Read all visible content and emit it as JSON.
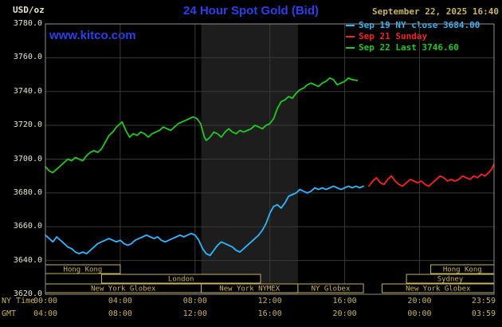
{
  "colors": {
    "background": "#000000",
    "blue": "#2a3ff0",
    "tan": "#c8b45a",
    "axis_text": "#e8e4d0",
    "grid": "#383838",
    "frame": "#8f8f8f",
    "band": "#1d1d1d"
  },
  "header": {
    "unit_label": "USD/oz",
    "title": "24 Hour Spot Gold (Bid)",
    "datetime": "September 22, 2025 16:40",
    "watermark": "www.kitco.com"
  },
  "axis": {
    "ny_label": "NY Time",
    "gmt_label": "GMT",
    "tick_hours": [
      0,
      4,
      8,
      12,
      16,
      20,
      23.983
    ],
    "ny_ticks": [
      "00:00",
      "04:00",
      "08:00",
      "12:00",
      "16:00",
      "20:00",
      "23:59"
    ],
    "gmt_ticks": [
      "04:00",
      "08:00",
      "12:00",
      "16:00",
      "20:00",
      "00:00",
      "03:59"
    ],
    "y_ticks": [
      "3780.0",
      "3760.0",
      "3740.0",
      "3720.0",
      "3700.0",
      "3680.0",
      "3660.0",
      "3640.0",
      "3620.0"
    ]
  },
  "chart_data": {
    "type": "line",
    "title": "24 Hour Spot Gold (Bid)",
    "xlabel": "NY Time",
    "ylabel": "USD/oz",
    "ylim": [
      3620,
      3780
    ],
    "xlim_hours": [
      0,
      23.983
    ],
    "grid": true,
    "legend_position": "top-right",
    "shaded_region_hours": [
      8.33,
      13.5
    ],
    "series": [
      {
        "name": "Sep 19",
        "legend_label": "Sep 19 NY close 3684.00",
        "color": "#2bb8ff",
        "points": [
          [
            0,
            3655
          ],
          [
            0.2,
            3653
          ],
          [
            0.4,
            3651
          ],
          [
            0.6,
            3654
          ],
          [
            0.8,
            3652
          ],
          [
            1,
            3650
          ],
          [
            1.2,
            3648
          ],
          [
            1.4,
            3647
          ],
          [
            1.6,
            3645
          ],
          [
            1.8,
            3644
          ],
          [
            2,
            3645
          ],
          [
            2.2,
            3644
          ],
          [
            2.4,
            3646
          ],
          [
            2.6,
            3648
          ],
          [
            2.8,
            3650
          ],
          [
            3,
            3651
          ],
          [
            3.2,
            3652
          ],
          [
            3.4,
            3653
          ],
          [
            3.6,
            3652
          ],
          [
            3.8,
            3651
          ],
          [
            4,
            3652
          ],
          [
            4.2,
            3650
          ],
          [
            4.4,
            3649
          ],
          [
            4.6,
            3650
          ],
          [
            4.8,
            3652
          ],
          [
            5,
            3653
          ],
          [
            5.2,
            3654
          ],
          [
            5.4,
            3655
          ],
          [
            5.6,
            3654
          ],
          [
            5.8,
            3653
          ],
          [
            6,
            3654
          ],
          [
            6.2,
            3652
          ],
          [
            6.4,
            3651
          ],
          [
            6.6,
            3652
          ],
          [
            6.8,
            3653
          ],
          [
            7,
            3654
          ],
          [
            7.2,
            3655
          ],
          [
            7.4,
            3654
          ],
          [
            7.6,
            3655
          ],
          [
            7.8,
            3656
          ],
          [
            8,
            3655
          ],
          [
            8.2,
            3652
          ],
          [
            8.4,
            3647
          ],
          [
            8.6,
            3644
          ],
          [
            8.8,
            3643
          ],
          [
            9,
            3646
          ],
          [
            9.2,
            3649
          ],
          [
            9.4,
            3651
          ],
          [
            9.6,
            3650
          ],
          [
            9.8,
            3649
          ],
          [
            10,
            3648
          ],
          [
            10.2,
            3646
          ],
          [
            10.4,
            3645
          ],
          [
            10.6,
            3647
          ],
          [
            10.8,
            3649
          ],
          [
            11,
            3651
          ],
          [
            11.2,
            3653
          ],
          [
            11.4,
            3655
          ],
          [
            11.6,
            3658
          ],
          [
            11.8,
            3662
          ],
          [
            12,
            3668
          ],
          [
            12.2,
            3672
          ],
          [
            12.4,
            3673
          ],
          [
            12.6,
            3671
          ],
          [
            12.8,
            3674
          ],
          [
            13,
            3678
          ],
          [
            13.2,
            3679
          ],
          [
            13.4,
            3680
          ],
          [
            13.6,
            3682
          ],
          [
            13.8,
            3681
          ],
          [
            14,
            3680
          ],
          [
            14.2,
            3681
          ],
          [
            14.4,
            3683
          ],
          [
            14.6,
            3682
          ],
          [
            14.8,
            3683
          ],
          [
            15,
            3682
          ],
          [
            15.2,
            3683
          ],
          [
            15.4,
            3684
          ],
          [
            15.6,
            3683
          ],
          [
            15.8,
            3682
          ],
          [
            16,
            3683
          ],
          [
            16.2,
            3684
          ],
          [
            16.4,
            3683
          ],
          [
            16.6,
            3684
          ],
          [
            16.8,
            3683
          ],
          [
            17,
            3684
          ]
        ]
      },
      {
        "name": "Sep 21",
        "legend_label": "Sep 21 Sunday",
        "color": "#ff1f1f",
        "points": [
          [
            17.3,
            3684
          ],
          [
            17.5,
            3687
          ],
          [
            17.7,
            3689
          ],
          [
            17.9,
            3686
          ],
          [
            18.1,
            3685
          ],
          [
            18.3,
            3688
          ],
          [
            18.5,
            3690
          ],
          [
            18.7,
            3687
          ],
          [
            18.9,
            3685
          ],
          [
            19.1,
            3684
          ],
          [
            19.3,
            3686
          ],
          [
            19.5,
            3688
          ],
          [
            19.7,
            3687
          ],
          [
            19.9,
            3686
          ],
          [
            20.1,
            3687
          ],
          [
            20.3,
            3685
          ],
          [
            20.5,
            3684
          ],
          [
            20.7,
            3686
          ],
          [
            20.9,
            3688
          ],
          [
            21.1,
            3690
          ],
          [
            21.3,
            3689
          ],
          [
            21.5,
            3687
          ],
          [
            21.7,
            3688
          ],
          [
            21.9,
            3687
          ],
          [
            22.1,
            3688
          ],
          [
            22.3,
            3690
          ],
          [
            22.5,
            3689
          ],
          [
            22.7,
            3688
          ],
          [
            22.9,
            3690
          ],
          [
            23.1,
            3689
          ],
          [
            23.3,
            3691
          ],
          [
            23.5,
            3690
          ],
          [
            23.7,
            3692
          ],
          [
            23.85,
            3694
          ],
          [
            23.98,
            3697
          ]
        ]
      },
      {
        "name": "Sep 22",
        "legend_label": "Sep 22 Last 3746.60",
        "color": "#1ecb1e",
        "points": [
          [
            0,
            3695.5
          ],
          [
            0.2,
            3693
          ],
          [
            0.4,
            3692
          ],
          [
            0.6,
            3694
          ],
          [
            0.8,
            3696
          ],
          [
            1,
            3698
          ],
          [
            1.2,
            3700
          ],
          [
            1.4,
            3699
          ],
          [
            1.6,
            3701
          ],
          [
            1.8,
            3700
          ],
          [
            2,
            3699
          ],
          [
            2.2,
            3702
          ],
          [
            2.4,
            3704
          ],
          [
            2.6,
            3705
          ],
          [
            2.8,
            3704
          ],
          [
            3,
            3706
          ],
          [
            3.2,
            3710
          ],
          [
            3.4,
            3714
          ],
          [
            3.6,
            3716
          ],
          [
            3.8,
            3719
          ],
          [
            4,
            3721
          ],
          [
            4.1,
            3722
          ],
          [
            4.3,
            3717
          ],
          [
            4.5,
            3713
          ],
          [
            4.7,
            3715
          ],
          [
            4.9,
            3714
          ],
          [
            5.1,
            3716
          ],
          [
            5.3,
            3715
          ],
          [
            5.5,
            3713
          ],
          [
            5.7,
            3715
          ],
          [
            5.9,
            3716
          ],
          [
            6.1,
            3717
          ],
          [
            6.3,
            3719
          ],
          [
            6.5,
            3718
          ],
          [
            6.7,
            3717
          ],
          [
            6.9,
            3719
          ],
          [
            7.1,
            3721
          ],
          [
            7.3,
            3722
          ],
          [
            7.5,
            3723
          ],
          [
            7.7,
            3724
          ],
          [
            7.9,
            3725
          ],
          [
            8.1,
            3724
          ],
          [
            8.3,
            3721
          ],
          [
            8.5,
            3713
          ],
          [
            8.6,
            3711
          ],
          [
            8.8,
            3713
          ],
          [
            9,
            3716
          ],
          [
            9.2,
            3715
          ],
          [
            9.4,
            3713
          ],
          [
            9.6,
            3716
          ],
          [
            9.8,
            3718
          ],
          [
            10,
            3716
          ],
          [
            10.2,
            3715
          ],
          [
            10.4,
            3717
          ],
          [
            10.6,
            3716
          ],
          [
            10.8,
            3717
          ],
          [
            11,
            3718
          ],
          [
            11.2,
            3720
          ],
          [
            11.4,
            3719
          ],
          [
            11.6,
            3718
          ],
          [
            11.8,
            3720
          ],
          [
            12,
            3721
          ],
          [
            12.2,
            3724
          ],
          [
            12.4,
            3730
          ],
          [
            12.6,
            3734
          ],
          [
            12.8,
            3735
          ],
          [
            13,
            3737
          ],
          [
            13.2,
            3736
          ],
          [
            13.4,
            3739
          ],
          [
            13.6,
            3741
          ],
          [
            13.8,
            3742
          ],
          [
            14,
            3744
          ],
          [
            14.2,
            3745
          ],
          [
            14.4,
            3744
          ],
          [
            14.6,
            3743
          ],
          [
            14.8,
            3745
          ],
          [
            15,
            3746
          ],
          [
            15.2,
            3748
          ],
          [
            15.4,
            3747
          ],
          [
            15.6,
            3744
          ],
          [
            15.8,
            3745
          ],
          [
            16,
            3746
          ],
          [
            16.2,
            3748
          ],
          [
            16.4,
            3747
          ],
          [
            16.67,
            3746.6
          ]
        ]
      }
    ],
    "sessions": [
      {
        "row": 1,
        "start": 0,
        "end": 4,
        "label": "Hong Kong"
      },
      {
        "row": 1,
        "start": 20.6,
        "end": 23.983,
        "label": "Hong Kong"
      },
      {
        "row": 2,
        "start": 3,
        "end": 11.5,
        "label": "London"
      },
      {
        "row": 2,
        "start": 19.3,
        "end": 23.983,
        "label": "Sydney"
      },
      {
        "row": 3,
        "start": 0,
        "end": 8.33,
        "label": "New York Globex"
      },
      {
        "row": 3,
        "start": 8.33,
        "end": 13.5,
        "label": "New York NYMEX"
      },
      {
        "row": 3,
        "start": 13.5,
        "end": 17,
        "label": "NY Globex"
      },
      {
        "row": 3,
        "start": 18,
        "end": 23.983,
        "label": "New York Globex"
      }
    ]
  }
}
